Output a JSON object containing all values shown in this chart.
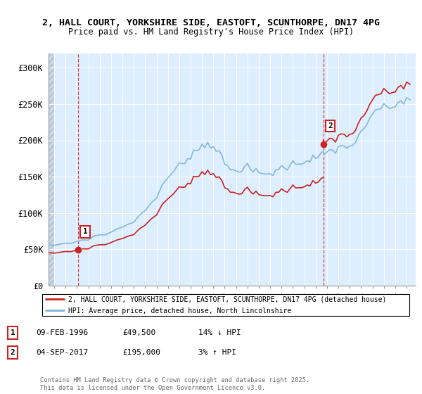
{
  "title_line1": "2, HALL COURT, YORKSHIRE SIDE, EASTOFT, SCUNTHORPE, DN17 4PG",
  "title_line2": "Price paid vs. HM Land Registry's House Price Index (HPI)",
  "ylim": [
    0,
    320000
  ],
  "yticks": [
    0,
    50000,
    100000,
    150000,
    200000,
    250000,
    300000
  ],
  "ytick_labels": [
    "£0",
    "£50K",
    "£100K",
    "£150K",
    "£200K",
    "£250K",
    "£300K"
  ],
  "purchase1_date": 1996.11,
  "purchase1_price": 49500,
  "purchase2_date": 2017.67,
  "purchase2_price": 195000,
  "hpi_color": "#7ab4d8",
  "price_color": "#cc2222",
  "vline_color": "#cc2222",
  "bg_color": "#ddeeff",
  "hatch_color": "#c8d8e8",
  "legend_label1": "2, HALL COURT, YORKSHIRE SIDE, EASTOFT, SCUNTHORPE, DN17 4PG (detached house)",
  "legend_label2": "HPI: Average price, detached house, North Lincolnshire",
  "footer_text": "Contains HM Land Registry data © Crown copyright and database right 2025.\nThis data is licensed under the Open Government Licence v3.0.",
  "table_rows": [
    {
      "num": "1",
      "date": "09-FEB-1996",
      "price": "£49,500",
      "hpi": "14% ↓ HPI"
    },
    {
      "num": "2",
      "date": "04-SEP-2017",
      "price": "£195,000",
      "hpi": "3% ↑ HPI"
    }
  ],
  "xmin": 1993.5,
  "xmax": 2025.8,
  "hpi_years": [
    1993.5,
    1994,
    1994.5,
    1995,
    1995.5,
    1996,
    1996.5,
    1997,
    1997.5,
    1998,
    1998.5,
    1999,
    1999.5,
    2000,
    2000.5,
    2001,
    2001.5,
    2002,
    2002.5,
    2003,
    2003.5,
    2004,
    2004.5,
    2005,
    2005.25,
    2005.5,
    2005.75,
    2006,
    2006.25,
    2006.5,
    2006.75,
    2007,
    2007.25,
    2007.5,
    2007.75,
    2008,
    2008.25,
    2008.5,
    2008.75,
    2009,
    2009.25,
    2009.5,
    2009.75,
    2010,
    2010.25,
    2010.5,
    2010.75,
    2011,
    2011.25,
    2011.5,
    2011.75,
    2012,
    2012.25,
    2012.5,
    2012.75,
    2013,
    2013.25,
    2013.5,
    2013.75,
    2014,
    2014.25,
    2014.5,
    2014.75,
    2015,
    2015.25,
    2015.5,
    2015.75,
    2016,
    2016.25,
    2016.5,
    2016.75,
    2017,
    2017.25,
    2017.5,
    2017.67,
    2017.75,
    2018,
    2018.25,
    2018.5,
    2018.75,
    2019,
    2019.25,
    2019.5,
    2019.75,
    2020,
    2020.25,
    2020.5,
    2020.75,
    2021,
    2021.25,
    2021.5,
    2021.75,
    2022,
    2022.25,
    2022.5,
    2022.75,
    2023,
    2023.25,
    2023.5,
    2023.75,
    2024,
    2024.25,
    2024.5,
    2024.75,
    2025,
    2025.3
  ],
  "hpi_values": [
    55000,
    56000,
    57000,
    58000,
    59000,
    61000,
    63000,
    65000,
    67000,
    69000,
    71000,
    74000,
    77000,
    81000,
    85000,
    90000,
    96000,
    103000,
    113000,
    124000,
    135000,
    148000,
    158000,
    164000,
    168000,
    172000,
    176000,
    180000,
    184000,
    187000,
    189000,
    192000,
    194000,
    196000,
    195000,
    193000,
    188000,
    182000,
    175000,
    168000,
    163000,
    160000,
    158000,
    160000,
    161000,
    162000,
    163000,
    162000,
    160000,
    158000,
    156000,
    155000,
    154000,
    153000,
    154000,
    155000,
    156000,
    158000,
    160000,
    162000,
    163000,
    165000,
    166000,
    167000,
    168000,
    170000,
    171000,
    172000,
    173000,
    174000,
    175000,
    176000,
    177000,
    179000,
    180000,
    181000,
    183000,
    185000,
    187000,
    188000,
    189000,
    190000,
    191000,
    192000,
    193000,
    195000,
    198000,
    202000,
    208000,
    214000,
    220000,
    228000,
    236000,
    242000,
    245000,
    244000,
    243000,
    244000,
    245000,
    247000,
    249000,
    251000,
    253000,
    255000,
    257000,
    258000
  ]
}
